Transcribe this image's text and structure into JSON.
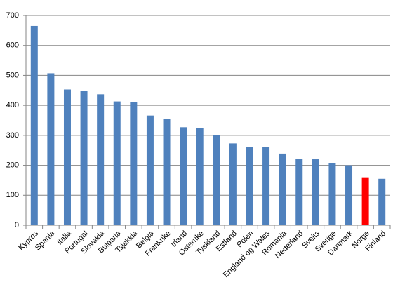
{
  "chart_data": {
    "type": "bar",
    "categories": [
      "Kypros",
      "Spania",
      "Italia",
      "Portugal",
      "Slovakia",
      "Bulgaria",
      "Tsjekkia",
      "Belgia",
      "Frankrike",
      "Irland",
      "Østerrike",
      "Tyskland",
      "Estland",
      "Polen",
      "England og Wales",
      "Romania",
      "Nederland",
      "Sveits",
      "Sverige",
      "Danmark",
      "Norge",
      "Finland"
    ],
    "values": [
      665,
      507,
      453,
      448,
      437,
      413,
      410,
      366,
      355,
      327,
      324,
      300,
      273,
      261,
      260,
      239,
      221,
      220,
      208,
      200,
      160,
      155
    ],
    "colors": [
      "#4f81bd",
      "#4f81bd",
      "#4f81bd",
      "#4f81bd",
      "#4f81bd",
      "#4f81bd",
      "#4f81bd",
      "#4f81bd",
      "#4f81bd",
      "#4f81bd",
      "#4f81bd",
      "#4f81bd",
      "#4f81bd",
      "#4f81bd",
      "#4f81bd",
      "#4f81bd",
      "#4f81bd",
      "#4f81bd",
      "#4f81bd",
      "#4f81bd",
      "#ff0000",
      "#4f81bd"
    ],
    "ylim": [
      0,
      700
    ],
    "yticks": [
      0,
      100,
      200,
      300,
      400,
      500,
      600,
      700
    ],
    "grid": true
  }
}
